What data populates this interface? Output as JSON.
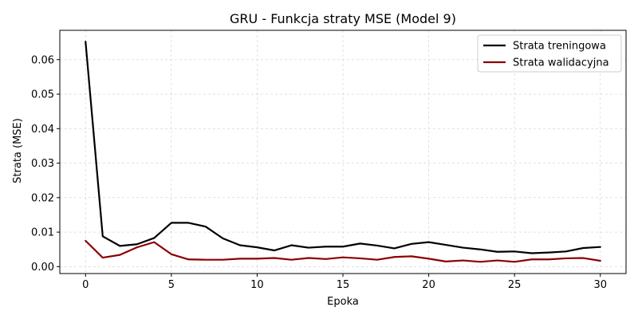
{
  "chart_data": {
    "type": "line",
    "title": "GRU - Funkcja straty MSE (Model 9)",
    "xlabel": "Epoka",
    "ylabel": "Strata (MSE)",
    "xlim": [
      -1.5,
      31.5
    ],
    "ylim": [
      -0.002,
      0.0685
    ],
    "xticks": [
      0,
      5,
      10,
      15,
      20,
      25,
      30
    ],
    "xtick_labels": [
      "0",
      "5",
      "10",
      "15",
      "20",
      "25",
      "30"
    ],
    "yticks": [
      0.0,
      0.01,
      0.02,
      0.03,
      0.04,
      0.05,
      0.06
    ],
    "ytick_labels": [
      "0.00",
      "0.01",
      "0.02",
      "0.03",
      "0.04",
      "0.05",
      "0.06"
    ],
    "grid": true,
    "legend_position": "top-right",
    "x": [
      0,
      1,
      2,
      3,
      4,
      5,
      6,
      7,
      8,
      9,
      10,
      11,
      12,
      13,
      14,
      15,
      16,
      17,
      18,
      19,
      20,
      21,
      22,
      23,
      24,
      25,
      26,
      27,
      28,
      29,
      30
    ],
    "series": [
      {
        "name": "Strata treningowa",
        "color": "#000000",
        "values": [
          0.0652,
          0.0088,
          0.006,
          0.0065,
          0.0083,
          0.0127,
          0.0127,
          0.0116,
          0.0082,
          0.0062,
          0.0056,
          0.0047,
          0.0062,
          0.0055,
          0.0058,
          0.0058,
          0.0067,
          0.0061,
          0.0053,
          0.0066,
          0.0071,
          0.0063,
          0.0055,
          0.005,
          0.0043,
          0.0044,
          0.0039,
          0.0041,
          0.0044,
          0.0054,
          0.0057
        ]
      },
      {
        "name": "Strata walidacyjna",
        "color": "#8b0000",
        "values": [
          0.0075,
          0.0026,
          0.0034,
          0.0056,
          0.0071,
          0.0036,
          0.0021,
          0.002,
          0.002,
          0.0023,
          0.0023,
          0.0025,
          0.002,
          0.0025,
          0.0022,
          0.0027,
          0.0024,
          0.002,
          0.0028,
          0.003,
          0.0023,
          0.0015,
          0.0018,
          0.0014,
          0.0018,
          0.0014,
          0.0021,
          0.0021,
          0.0024,
          0.0025,
          0.0017
        ]
      }
    ]
  }
}
